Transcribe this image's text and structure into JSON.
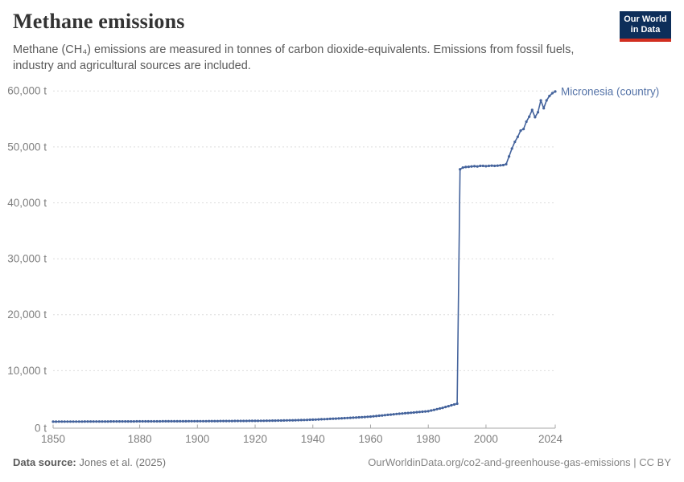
{
  "header": {
    "title": "Methane emissions",
    "subtitle": "Methane (CH₄) emissions are measured in tonnes of carbon dioxide-equivalents. Emissions from fossil fuels, industry and agricultural sources are included.",
    "logo_line1": "Our World",
    "logo_line2": "in Data"
  },
  "footer": {
    "source_label": "Data source:",
    "source_value": "Jones et al. (2025)",
    "license": "OurWorldinData.org/co2-and-greenhouse-gas-emissions | CC BY"
  },
  "colors": {
    "line": "#44639C",
    "entity_label": "#5674A8",
    "grid": "#dddddd",
    "axis": "#a7a7a7",
    "tick_label": "#7f7f7f",
    "logo_bg": "#0d2e5a",
    "logo_red": "#d12e1f"
  },
  "chart_data": {
    "type": "line",
    "title": "Methane emissions",
    "xlabel": "",
    "ylabel": "",
    "unit": "t",
    "xlim": [
      1850,
      2024
    ],
    "ylim": [
      0,
      60000
    ],
    "grid": "horizontal-dashed",
    "legend_position": "end-of-line-label",
    "x_ticks": [
      {
        "year": 1850,
        "label": "1850"
      },
      {
        "year": 1880,
        "label": "1880"
      },
      {
        "year": 1900,
        "label": "1900"
      },
      {
        "year": 1920,
        "label": "1920"
      },
      {
        "year": 1940,
        "label": "1940"
      },
      {
        "year": 1960,
        "label": "1960"
      },
      {
        "year": 1980,
        "label": "1980"
      },
      {
        "year": 2000,
        "label": "2000"
      },
      {
        "year": 2024,
        "label": "2024"
      }
    ],
    "y_ticks": [
      {
        "value": 0,
        "label": "0 t"
      },
      {
        "value": 10000,
        "label": "10,000 t"
      },
      {
        "value": 20000,
        "label": "20,000 t"
      },
      {
        "value": 30000,
        "label": "30,000 t"
      },
      {
        "value": 40000,
        "label": "40,000 t"
      },
      {
        "value": 50000,
        "label": "50,000 t"
      },
      {
        "value": 60000,
        "label": "60,000 t"
      }
    ],
    "series": [
      {
        "name": "Micronesia (country)",
        "color": "#44639C",
        "marker": "circle",
        "interpolation": "linear-yearly",
        "anchors": [
          [
            1850,
            880
          ],
          [
            1855,
            888
          ],
          [
            1860,
            896
          ],
          [
            1865,
            904
          ],
          [
            1870,
            912
          ],
          [
            1875,
            920
          ],
          [
            1880,
            928
          ],
          [
            1885,
            936
          ],
          [
            1890,
            944
          ],
          [
            1895,
            952
          ],
          [
            1900,
            960
          ],
          [
            1905,
            975
          ],
          [
            1910,
            990
          ],
          [
            1915,
            1005
          ],
          [
            1920,
            1020
          ],
          [
            1925,
            1050
          ],
          [
            1930,
            1090
          ],
          [
            1935,
            1150
          ],
          [
            1940,
            1230
          ],
          [
            1945,
            1350
          ],
          [
            1950,
            1480
          ],
          [
            1955,
            1620
          ],
          [
            1960,
            1780
          ],
          [
            1965,
            2040
          ],
          [
            1970,
            2300
          ],
          [
            1975,
            2520
          ],
          [
            1980,
            2750
          ],
          [
            1985,
            3350
          ],
          [
            1990,
            4100
          ],
          [
            1991,
            46000
          ],
          [
            1992,
            46300
          ],
          [
            1993,
            46400
          ],
          [
            1994,
            46450
          ],
          [
            1995,
            46500
          ],
          [
            1996,
            46550
          ],
          [
            1997,
            46500
          ],
          [
            1998,
            46600
          ],
          [
            1999,
            46600
          ],
          [
            2000,
            46550
          ],
          [
            2001,
            46600
          ],
          [
            2002,
            46650
          ],
          [
            2003,
            46600
          ],
          [
            2004,
            46650
          ],
          [
            2005,
            46700
          ],
          [
            2006,
            46750
          ],
          [
            2007,
            46900
          ],
          [
            2008,
            48300
          ],
          [
            2009,
            49700
          ],
          [
            2010,
            50900
          ],
          [
            2011,
            51800
          ],
          [
            2012,
            52900
          ],
          [
            2013,
            53200
          ],
          [
            2014,
            54500
          ],
          [
            2015,
            55400
          ],
          [
            2016,
            56600
          ],
          [
            2017,
            55300
          ],
          [
            2018,
            56200
          ],
          [
            2019,
            58300
          ],
          [
            2020,
            56900
          ],
          [
            2021,
            58300
          ],
          [
            2022,
            59100
          ],
          [
            2023,
            59600
          ],
          [
            2024,
            59900
          ]
        ]
      }
    ]
  }
}
